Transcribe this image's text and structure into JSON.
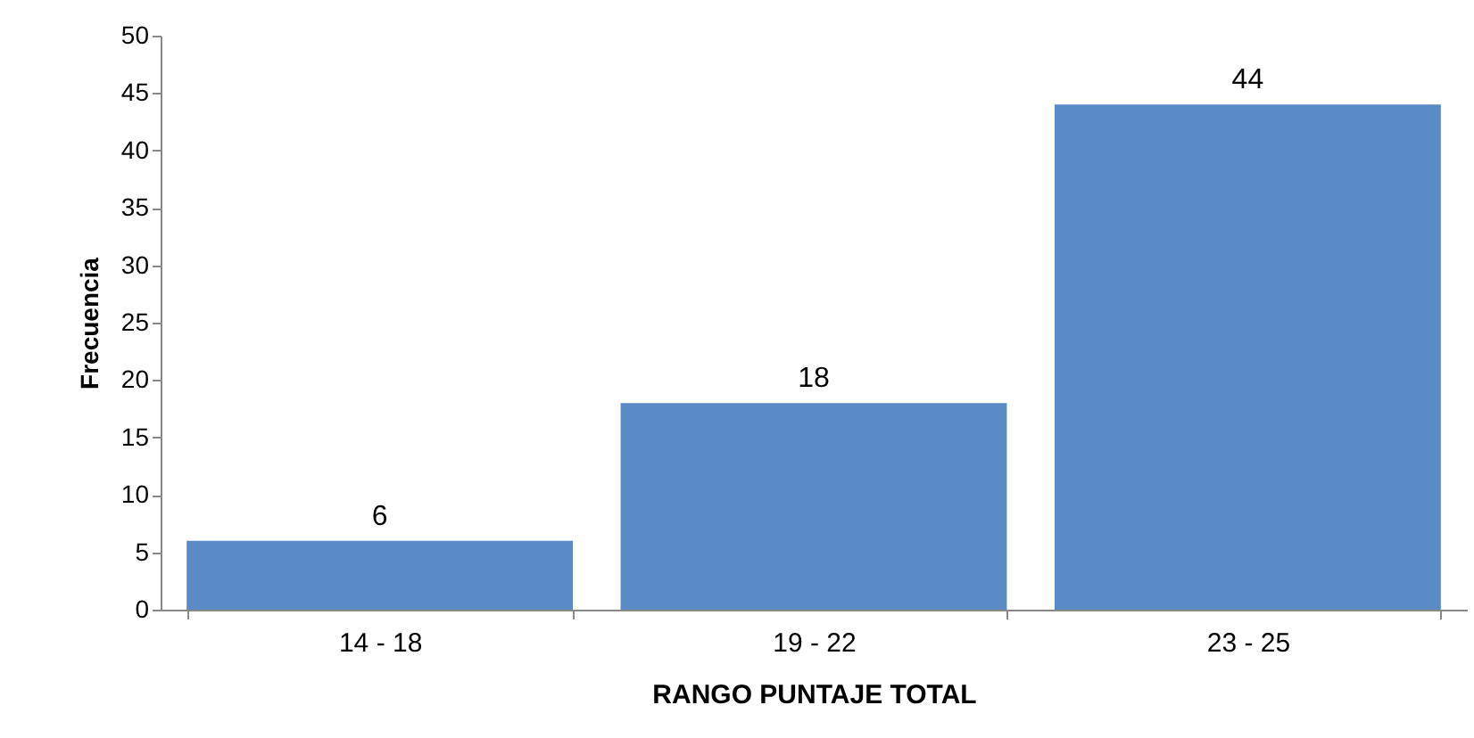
{
  "chart_data": {
    "type": "bar",
    "xlabel": "RANGO PUNTAJE TOTAL",
    "ylabel": "Frecuencia",
    "categories": [
      "14 - 18",
      "19 - 22",
      "23 - 25"
    ],
    "values": [
      6,
      18,
      44
    ],
    "color": "#5b8bc5",
    "ylim": [
      0,
      50
    ],
    "yticks": [
      0,
      5,
      10,
      15,
      20,
      25,
      30,
      35,
      40,
      45,
      50
    ],
    "grid": false,
    "data_labels": true
  }
}
